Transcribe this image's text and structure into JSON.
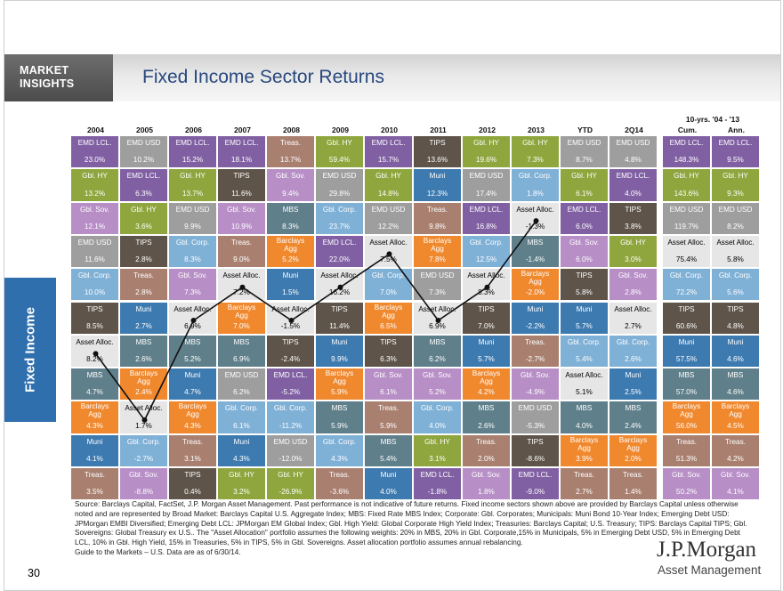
{
  "header": {
    "badge_line1": "MARKET",
    "badge_line2": "INSIGHTS",
    "title": "Fixed Income Sector Returns"
  },
  "side_tab": "Fixed Income",
  "page_number": "30",
  "footer": {
    "source": "Source: Barclays Capital, FactSet, J.P. Morgan Asset Management. Past performance is not indicative of future returns. Fixed income sectors shown above are provided by Barclays Capital unless otherwise noted and are represented by Broad Market: Barclays Capital U.S. Aggregate Index; MBS: Fixed Rate MBS Index; Corporate: Gbl. Corporates; Municipals: Muni Bond 10-Year Index; Emerging Debt USD: JPMorgan EMBI Diversified; Emerging Debt LCL: JPMorgan EM Global Index; Gbl. High Yield: Global Corporate High Yield Index; Treasuries: Barclays Capital; U.S. Treasury; TIPS: Barclays Capital TIPS; Gbl. Sovereigns: Global Treasury ex U.S.. The \"Asset Allocation\" portfolio assumes the following weights: 20% in MBS, 20% in Gbl. Corporate,15% in Municipals, 5% in Emerging Debt USD, 5% in Emerging Debt LCL, 10% in Gbl. High Yield, 15% in Treasuries, 5% in TIPS, 5% in Gbl. Sovereigns. Asset allocation portfolio assumes annual rebalancing.",
    "guide": "Guide to the Markets – U.S. Data are as of 6/30/14."
  },
  "logo": {
    "name": "J.P.Morgan",
    "sub": "Asset Management"
  },
  "colors": {
    "EMD LCL.": "#8060a3",
    "EMD USD": "#9e9e9e",
    "Gbl. HY": "#8fa53d",
    "Gbl. Sov.": "#b78ec6",
    "Gbl. Corp.": "#7fb0d6",
    "Treas.": "#a98070",
    "TIPS": "#5e5449",
    "Muni": "#3d7ab0",
    "MBS": "#5f7f8a",
    "Barclays Agg": "#f0882e",
    "Asset Alloc.": "#e6e6e6"
  },
  "chart_data": {
    "type": "table",
    "title": "Fixed Income Sector Returns",
    "header_top_label": "10-yrs. '04 - '13",
    "columns": [
      "2004",
      "2005",
      "2006",
      "2007",
      "2008",
      "2009",
      "2010",
      "2011",
      "2012",
      "2013",
      "YTD",
      "2Q14",
      "Cum.",
      "Ann."
    ],
    "grid": [
      [
        [
          "EMD LCL.",
          "23.0%"
        ],
        [
          "EMD USD",
          "10.2%"
        ],
        [
          "EMD LCL.",
          "15.2%"
        ],
        [
          "EMD LCL.",
          "18.1%"
        ],
        [
          "Treas.",
          "13.7%"
        ],
        [
          "Gbl. HY",
          "59.4%"
        ],
        [
          "EMD LCL.",
          "15.7%"
        ],
        [
          "TIPS",
          "13.6%"
        ],
        [
          "Gbl. HY",
          "19.6%"
        ],
        [
          "Gbl. HY",
          "7.3%"
        ],
        [
          "EMD USD",
          "8.7%"
        ],
        [
          "EMD USD",
          "4.8%"
        ],
        [
          "EMD LCL.",
          "148.3%"
        ],
        [
          "EMD LCL.",
          "9.5%"
        ]
      ],
      [
        [
          "Gbl. HY",
          "13.2%"
        ],
        [
          "EMD LCL.",
          "6.3%"
        ],
        [
          "Gbl. HY",
          "13.7%"
        ],
        [
          "TIPS",
          "11.6%"
        ],
        [
          "Gbl. Sov.",
          "9.4%"
        ],
        [
          "EMD USD",
          "29.8%"
        ],
        [
          "Gbl. HY",
          "14.8%"
        ],
        [
          "Muni",
          "12.3%"
        ],
        [
          "EMD USD",
          "17.4%"
        ],
        [
          "Gbl. Corp.",
          "1.8%"
        ],
        [
          "Gbl. HY",
          "6.1%"
        ],
        [
          "EMD LCL.",
          "4.0%"
        ],
        [
          "Gbl. HY",
          "143.6%"
        ],
        [
          "Gbl. HY",
          "9.3%"
        ]
      ],
      [
        [
          "Gbl. Sov.",
          "12.1%"
        ],
        [
          "Gbl. HY",
          "3.6%"
        ],
        [
          "EMD USD",
          "9.9%"
        ],
        [
          "Gbl. Sov.",
          "10.9%"
        ],
        [
          "MBS",
          "8.3%"
        ],
        [
          "Gbl. Corp.",
          "23.7%"
        ],
        [
          "EMD USD",
          "12.2%"
        ],
        [
          "Treas.",
          "9.8%"
        ],
        [
          "EMD LCL.",
          "16.8%"
        ],
        [
          "Asset Alloc.",
          "-1.3%"
        ],
        [
          "EMD LCL.",
          "6.0%"
        ],
        [
          "TIPS",
          "3.8%"
        ],
        [
          "EMD USD",
          "119.7%"
        ],
        [
          "EMD USD",
          "8.2%"
        ]
      ],
      [
        [
          "EMD USD",
          "11.6%"
        ],
        [
          "TIPS",
          "2.8%"
        ],
        [
          "Gbl. Corp.",
          "8.3%"
        ],
        [
          "Treas.",
          "9.0%"
        ],
        [
          "Barclays Agg",
          "5.2%"
        ],
        [
          "EMD LCL.",
          "22.0%"
        ],
        [
          "Asset Alloc.",
          "7.5%"
        ],
        [
          "Barclays Agg",
          "7.8%"
        ],
        [
          "Gbl. Corp.",
          "12.5%"
        ],
        [
          "MBS",
          "-1.4%"
        ],
        [
          "Gbl. Sov.",
          "6.0%"
        ],
        [
          "Gbl. HY",
          "3.0%"
        ],
        [
          "Asset Alloc.",
          "75.4%"
        ],
        [
          "Asset Alloc.",
          "5.8%"
        ]
      ],
      [
        [
          "Gbl. Corp.",
          "10.0%"
        ],
        [
          "Treas.",
          "2.8%"
        ],
        [
          "Gbl. Sov.",
          "7.3%"
        ],
        [
          "Asset Alloc.",
          "7.2%"
        ],
        [
          "Muni",
          "1.5%"
        ],
        [
          "Asset Alloc.",
          "16.2%"
        ],
        [
          "Gbl. Corp.",
          "7.0%"
        ],
        [
          "EMD USD",
          "7.3%"
        ],
        [
          "Asset Alloc.",
          "8.3%"
        ],
        [
          "Barclays Agg",
          "-2.0%"
        ],
        [
          "TIPS",
          "5.8%"
        ],
        [
          "Gbl. Sov.",
          "2.8%"
        ],
        [
          "Gbl. Corp.",
          "72.2%"
        ],
        [
          "Gbl. Corp.",
          "5.6%"
        ]
      ],
      [
        [
          "TIPS",
          "8.5%"
        ],
        [
          "Muni",
          "2.7%"
        ],
        [
          "Asset Alloc.",
          "6.9%"
        ],
        [
          "Barclays Agg",
          "7.0%"
        ],
        [
          "Asset Alloc.",
          "-1.5%"
        ],
        [
          "TIPS",
          "11.4%"
        ],
        [
          "Barclays Agg",
          "6.5%"
        ],
        [
          "Asset Alloc.",
          "6.9%"
        ],
        [
          "TIPS",
          "7.0%"
        ],
        [
          "Muni",
          "-2.2%"
        ],
        [
          "Muni",
          "5.7%"
        ],
        [
          "Asset Alloc.",
          "2.7%"
        ],
        [
          "TIPS",
          "60.6%"
        ],
        [
          "TIPS",
          "4.8%"
        ]
      ],
      [
        [
          "Asset Alloc.",
          "8.2%"
        ],
        [
          "MBS",
          "2.6%"
        ],
        [
          "MBS",
          "5.2%"
        ],
        [
          "MBS",
          "6.9%"
        ],
        [
          "TIPS",
          "-2.4%"
        ],
        [
          "Muni",
          "9.9%"
        ],
        [
          "TIPS",
          "6.3%"
        ],
        [
          "MBS",
          "6.2%"
        ],
        [
          "Muni",
          "5.7%"
        ],
        [
          "Treas.",
          "-2.7%"
        ],
        [
          "Gbl. Corp.",
          "5.4%"
        ],
        [
          "Gbl. Corp.",
          "2.6%"
        ],
        [
          "Muni",
          "57.5%"
        ],
        [
          "Muni",
          "4.6%"
        ]
      ],
      [
        [
          "MBS",
          "4.7%"
        ],
        [
          "Barclays Agg",
          "2.4%"
        ],
        [
          "Muni",
          "4.7%"
        ],
        [
          "EMD USD",
          "6.2%"
        ],
        [
          "EMD LCL.",
          "-5.2%"
        ],
        [
          "Barclays Agg",
          "5.9%"
        ],
        [
          "Gbl. Sov.",
          "6.1%"
        ],
        [
          "Gbl. Sov.",
          "5.2%"
        ],
        [
          "Barclays Agg",
          "4.2%"
        ],
        [
          "Gbl. Sov.",
          "-4.9%"
        ],
        [
          "Asset Alloc.",
          "5.1%"
        ],
        [
          "Muni",
          "2.5%"
        ],
        [
          "MBS",
          "57.0%"
        ],
        [
          "MBS",
          "4.6%"
        ]
      ],
      [
        [
          "Barclays Agg",
          "4.3%"
        ],
        [
          "Asset Alloc.",
          "1.7%"
        ],
        [
          "Barclays Agg",
          "4.3%"
        ],
        [
          "Gbl. Corp.",
          "6.1%"
        ],
        [
          "Gbl. Corp.",
          "-11.2%"
        ],
        [
          "MBS",
          "5.9%"
        ],
        [
          "Treas.",
          "5.9%"
        ],
        [
          "Gbl. Corp.",
          "4.0%"
        ],
        [
          "MBS",
          "2.6%"
        ],
        [
          "EMD USD",
          "-5.3%"
        ],
        [
          "MBS",
          "4.0%"
        ],
        [
          "MBS",
          "2.4%"
        ],
        [
          "Barclays Agg",
          "56.0%"
        ],
        [
          "Barclays Agg",
          "4.5%"
        ]
      ],
      [
        [
          "Muni",
          "4.1%"
        ],
        [
          "Gbl. Corp.",
          "-2.7%"
        ],
        [
          "Treas.",
          "3.1%"
        ],
        [
          "Muni",
          "4.3%"
        ],
        [
          "EMD USD",
          "-12.0%"
        ],
        [
          "Gbl. Corp.",
          "4.3%"
        ],
        [
          "MBS",
          "5.4%"
        ],
        [
          "Gbl. HY",
          "3.1%"
        ],
        [
          "Treas.",
          "2.0%"
        ],
        [
          "TIPS",
          "-8.6%"
        ],
        [
          "Barclays Agg",
          "3.9%"
        ],
        [
          "Barclays Agg",
          "2.0%"
        ],
        [
          "Treas.",
          "51.3%"
        ],
        [
          "Treas.",
          "4.2%"
        ]
      ],
      [
        [
          "Treas.",
          "3.5%"
        ],
        [
          "Gbl. Sov.",
          "-8.8%"
        ],
        [
          "TIPS",
          "0.4%"
        ],
        [
          "Gbl. HY",
          "3.2%"
        ],
        [
          "Gbl. HY",
          "-26.9%"
        ],
        [
          "Treas.",
          "-3.6%"
        ],
        [
          "Muni",
          "4.0%"
        ],
        [
          "EMD LCL.",
          "-1.8%"
        ],
        [
          "Gbl. Sov.",
          "1.8%"
        ],
        [
          "EMD LCL.",
          "-9.0%"
        ],
        [
          "Treas.",
          "2.7%"
        ],
        [
          "Treas.",
          "1.4%"
        ],
        [
          "Gbl. Sov.",
          "50.2%"
        ],
        [
          "Gbl. Sov.",
          "4.1%"
        ]
      ]
    ],
    "asset_alloc_line_rows": [
      6,
      8,
      5,
      4,
      5,
      4,
      3,
      5,
      4,
      2
    ]
  }
}
